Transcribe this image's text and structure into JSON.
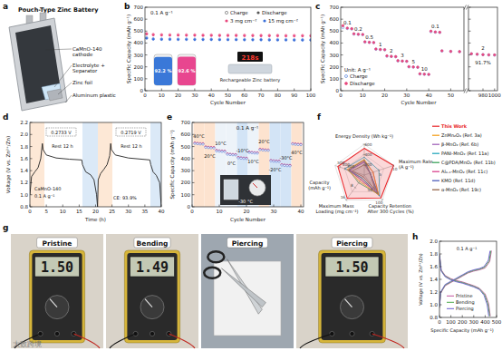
{
  "panel_labels": [
    "a",
    "b",
    "c",
    "d",
    "e",
    "f",
    "g",
    "h"
  ],
  "illustration": {
    "title": "Pouch-Type Zinc Battery",
    "layers": [
      "CaMnO-140 cathode",
      "Electrolyte + Separator",
      "Zinc foil",
      "Aluminum plastic"
    ]
  },
  "chart_data": [
    {
      "type": "scatter",
      "x_label": "Cycle Number",
      "y_label": "Specific Capacity (mAh g⁻¹)",
      "x": [
        1,
        5,
        10,
        15,
        20,
        25,
        30,
        35,
        40,
        45,
        50,
        55,
        60,
        65,
        70,
        75,
        80,
        85,
        90,
        95,
        100
      ],
      "xlim": [
        0,
        100
      ],
      "xticks": [
        0,
        10,
        20,
        30,
        40,
        50,
        60,
        70,
        80,
        90,
        100
      ],
      "ylim": [
        0,
        700
      ],
      "yticks": [
        0,
        100,
        200,
        300,
        400,
        500,
        600,
        700
      ],
      "series": [
        {
          "name": "3 mg cm⁻²",
          "color": "#e8467c",
          "values": [
            475,
            468,
            466,
            465,
            465,
            464,
            464,
            463,
            463,
            462,
            462,
            462,
            461,
            461,
            460,
            460,
            460,
            459,
            459,
            459,
            458
          ],
          "charge_values": [
            481,
            474,
            472,
            471,
            471,
            470,
            470,
            469,
            469,
            468,
            468,
            468,
            467,
            467,
            466,
            466,
            466,
            465,
            465,
            465,
            464
          ]
        },
        {
          "name": "15 mg cm⁻²",
          "color": "#3a6fd8",
          "values": [
            440,
            432,
            430,
            430,
            429,
            429,
            428,
            428,
            428,
            427,
            427,
            427,
            426,
            426,
            426,
            425,
            425,
            425,
            424,
            424,
            424
          ],
          "charge_values": [
            445,
            437,
            435,
            435,
            434,
            434,
            433,
            433,
            433,
            432,
            432,
            432,
            431,
            431,
            431,
            430,
            430,
            430,
            429,
            429,
            429
          ]
        }
      ],
      "legend_labels": [
        "Charge",
        "Discharge"
      ],
      "annotations": [
        "0.1 A g⁻¹",
        "218s",
        "Rechargeable Zinc battery"
      ],
      "retention": {
        "values": [
          92.2,
          92.6
        ],
        "value_labels": [
          "92.2 %",
          "92.6 %"
        ],
        "colors": [
          "#3a78d8",
          "#e8468f"
        ]
      }
    },
    {
      "type": "scatter",
      "x_label": "Cycle Number",
      "y_label": "Specific Capacity (mAh g⁻¹)",
      "x": [
        1,
        3,
        5,
        6,
        8,
        10,
        11,
        13,
        15,
        16,
        18,
        20,
        21,
        23,
        25,
        26,
        28,
        30,
        31,
        33,
        35,
        36,
        38,
        40,
        41,
        43,
        45,
        46,
        50,
        54
      ],
      "xlim": [
        0,
        56
      ],
      "xticks": [
        0,
        10,
        20,
        30,
        40,
        50
      ],
      "ylim": [
        0,
        700
      ],
      "yticks": [
        0,
        100,
        200,
        300,
        400,
        500,
        600,
        700
      ],
      "series": [
        {
          "name": "Charge",
          "color": "#3b6fd6",
          "marker": "open-circle",
          "values": [
            530,
            522,
            518,
            475,
            472,
            470,
            408,
            405,
            403,
            348,
            345,
            343,
            290,
            287,
            285,
            250,
            248,
            246,
            200,
            198,
            196,
            140,
            138,
            136,
            495,
            491,
            489,
            333,
            329,
            327
          ]
        },
        {
          "name": "Discharge",
          "color": "#e8467c",
          "marker": "circle",
          "values": [
            545,
            525,
            520,
            478,
            474,
            472,
            410,
            406,
            404,
            350,
            346,
            344,
            292,
            288,
            286,
            252,
            249,
            247,
            202,
            199,
            197,
            142,
            139,
            137,
            500,
            493,
            490,
            335,
            330,
            328
          ]
        }
      ],
      "rate_labels": [
        "0.1",
        "0.2",
        "0.5",
        "1",
        "2",
        "3",
        "5",
        "10",
        "0.1"
      ],
      "annotations": [
        "Unit: A g⁻¹"
      ]
    },
    {
      "type": "scatter",
      "x": [
        960,
        970,
        980,
        990,
        1000
      ],
      "xlim": [
        955,
        1005
      ],
      "xticks": [
        980,
        1000
      ],
      "ylim": [
        0,
        700
      ],
      "yticks": [
        0,
        100,
        200,
        300,
        400,
        500,
        600,
        700
      ],
      "tick_labels": "x",
      "series": [
        {
          "color": "#3b6fd6",
          "marker": "open-circle",
          "values": [
            309,
            305,
            302,
            300,
            299
          ]
        },
        {
          "color": "#e8467c",
          "marker": "circle",
          "values": [
            310,
            306,
            303,
            301,
            300
          ]
        }
      ],
      "annotations": [
        "2",
        "91.7%"
      ]
    },
    {
      "type": "line",
      "x_label": "Time (h)",
      "y_label": "Voltage (V vs. Zn²⁺/Zn)",
      "color": "#222222",
      "x": [
        0,
        0.5,
        1.5,
        2.5,
        3.3,
        3.8,
        4,
        5,
        8,
        12,
        15.8,
        16,
        17,
        18.5,
        19.5,
        20.3,
        20.6,
        20.8,
        21.5,
        22.5,
        23.5,
        24.3,
        24.6,
        24.8,
        26,
        30,
        36.5,
        36.8,
        37.5,
        38.5,
        39.5,
        40
      ],
      "values": [
        1.0,
        1.3,
        1.38,
        1.45,
        1.6,
        1.85,
        1.75,
        1.66,
        1.61,
        1.59,
        1.577,
        1.5,
        1.38,
        1.33,
        1.25,
        1.0,
        0.8,
        1.25,
        1.35,
        1.42,
        1.5,
        1.65,
        1.85,
        1.75,
        1.66,
        1.61,
        1.578,
        1.5,
        1.38,
        1.32,
        1.2,
        0.8
      ],
      "xlim": [
        0,
        40
      ],
      "xticks": [
        0,
        5,
        10,
        15,
        20,
        25,
        30,
        35,
        40
      ],
      "ylim": [
        0.8,
        2.2
      ],
      "yticks": [
        0.8,
        {
          "value": 1,
          "label": "1.0"
        },
        1.2,
        1.4,
        1.6,
        1.8,
        {
          "value": 2,
          "label": "2.0"
        },
        2.2
      ],
      "annotations": [
        "Rest 12 h",
        "Rest 12 h",
        "0.2733 V",
        "0.2719 V",
        "CaMnO-140",
        "0.1 A g⁻¹",
        "CE: 93.9%"
      ]
    },
    {
      "type": "scatter",
      "x_label": "Cycle Number",
      "y_label": "Specific Capacity (mAh g⁻¹)",
      "x": [
        1,
        2,
        3,
        4,
        5,
        6,
        7,
        8,
        9,
        10,
        11,
        12,
        13,
        14,
        15,
        16,
        17,
        18,
        19,
        20,
        21,
        22,
        23,
        24,
        25,
        26,
        27,
        28,
        29,
        30,
        31,
        32,
        33,
        34,
        35,
        36,
        37,
        38,
        39,
        40
      ],
      "xlim": [
        0,
        41
      ],
      "xticks": [
        0,
        10,
        20,
        30,
        40
      ],
      "ylim": [
        0,
        700
      ],
      "yticks": [
        0,
        100,
        200,
        300,
        400,
        500,
        600,
        700
      ],
      "series": [
        {
          "color": "#e8467c",
          "marker": "circle",
          "values": [
            530,
            527,
            525,
            524,
            498,
            495,
            493,
            492,
            468,
            465,
            463,
            462,
            440,
            437,
            435,
            434,
            410,
            407,
            405,
            404,
            455,
            452,
            450,
            449,
            478,
            475,
            473,
            472,
            385,
            382,
            380,
            379,
            350,
            347,
            345,
            344,
            525,
            522,
            520,
            519
          ]
        },
        {
          "color": "#3b6fd6",
          "marker": "open-circle",
          "values": [
            526,
            523,
            521,
            520,
            494,
            491,
            489,
            488,
            464,
            461,
            459,
            458,
            436,
            433,
            431,
            430,
            406,
            403,
            401,
            400,
            451,
            448,
            446,
            445,
            474,
            471,
            469,
            468,
            381,
            378,
            376,
            375,
            346,
            343,
            341,
            340,
            521,
            518,
            516,
            515
          ]
        }
      ],
      "temperature_labels": [
        "40°C",
        "20°C",
        "10°C",
        "0°C",
        "-10°C",
        "10°C",
        "20°C",
        "-20°C",
        "-30°C",
        "40°C"
      ],
      "annotations": [
        "0.1 A g⁻¹",
        "-30 °C"
      ]
    },
    {
      "type": "radar",
      "categories": [
        "Energy Density (Wh kg⁻¹)",
        "Maximum Rate (A g⁻¹)",
        "Capacity Retention After 300 Cycles (%)",
        "Maximum Mass Loading (mg cm⁻²)",
        "Capacity (mAh g⁻¹)"
      ],
      "ranges": [
        [
          0,
          600
        ],
        [
          0,
          10
        ],
        [
          0,
          100
        ],
        [
          0,
          16
        ],
        [
          0,
          600
        ]
      ],
      "ticks": [
        [
          200,
          400,
          600
        ],
        [
          5,
          10
        ],
        [
          50,
          100
        ],
        [
          8,
          16
        ],
        [
          300,
          400,
          500
        ]
      ],
      "series": [
        {
          "name": "This Work",
          "color": "#e8262a",
          "values": [
            520,
            10,
            92,
            15,
            540
          ]
        },
        {
          "name": "ZnMn₂O₄ (Ref. 3a)",
          "color": "#f39c12",
          "values": [
            300,
            3,
            80,
            4,
            350
          ]
        },
        {
          "name": "β-MnO₂ (Ref. 6b)",
          "color": "#9b59b6",
          "values": [
            250,
            2,
            70,
            3,
            300
          ]
        },
        {
          "name": "PANI-MnO₂ (Ref. 11a)",
          "color": "#17a2b8",
          "values": [
            350,
            5,
            85,
            2,
            400
          ]
        },
        {
          "name": "C@PDA/MnO₂ (Ref. 11b)",
          "color": "#2e9e4f",
          "values": [
            300,
            2,
            75,
            5,
            320
          ]
        },
        {
          "name": "Al₀.₁-MnO₂ (Ref. 11c)",
          "color": "#d63384",
          "values": [
            280,
            3,
            78,
            3,
            330
          ]
        },
        {
          "name": "KMO (Ref. 11d)",
          "color": "#3f51b5",
          "values": [
            260,
            2,
            82,
            2,
            300
          ]
        },
        {
          "name": "α-MnO₂ (Ref. 19c)",
          "color": "#8d5a3b",
          "values": [
            200,
            2,
            60,
            1,
            250
          ]
        }
      ]
    },
    {
      "type": "line",
      "x_label": "Specific Capacity (mAh g⁻¹)",
      "y_label": "Voltage (V vs. Zn²⁺/Zn)",
      "xlim": [
        0,
        500
      ],
      "xticks": [
        0,
        100,
        200,
        300,
        400,
        500
      ],
      "ylim": [
        0.8,
        2
      ],
      "yticks": [
        0.8,
        {
          "value": 1,
          "label": "1.0"
        },
        1.2,
        1.4,
        1.6,
        1.8,
        {
          "value": 2,
          "label": "2.0"
        }
      ],
      "series": [
        {
          "name": "Pristine",
          "color": "#c2539e",
          "x": [
            0,
            15,
            50,
            100,
            150,
            200,
            250,
            300,
            350,
            400,
            430,
            445
          ],
          "values": [
            1.8,
            1.55,
            1.46,
            1.41,
            1.38,
            1.36,
            1.33,
            1.3,
            1.26,
            1.17,
            1.02,
            0.82
          ],
          "charge_x": [
            0,
            10,
            50,
            100,
            150,
            200,
            250,
            300,
            350,
            400,
            440,
            455
          ],
          "charge_values": [
            0.95,
            1.18,
            1.3,
            1.35,
            1.4,
            1.45,
            1.5,
            1.53,
            1.55,
            1.58,
            1.68,
            1.85
          ]
        },
        {
          "name": "Bending",
          "color": "#4aa84a",
          "x": [
            0,
            15,
            50,
            100,
            150,
            200,
            250,
            300,
            350,
            395,
            425,
            440
          ],
          "values": [
            1.79,
            1.54,
            1.45,
            1.4,
            1.37,
            1.35,
            1.32,
            1.29,
            1.25,
            1.16,
            1.01,
            0.82
          ],
          "charge_x": [
            0,
            10,
            50,
            100,
            150,
            200,
            250,
            300,
            350,
            395,
            435,
            450
          ],
          "charge_values": [
            0.96,
            1.19,
            1.31,
            1.36,
            1.41,
            1.46,
            1.51,
            1.54,
            1.56,
            1.59,
            1.69,
            1.85
          ]
        },
        {
          "name": "Piercing",
          "color": "#6a5acd",
          "x": [
            0,
            15,
            50,
            100,
            150,
            200,
            250,
            300,
            350,
            390,
            418,
            432
          ],
          "values": [
            1.78,
            1.53,
            1.44,
            1.39,
            1.36,
            1.34,
            1.31,
            1.28,
            1.24,
            1.15,
            1.0,
            0.82
          ],
          "charge_x": [
            0,
            10,
            50,
            100,
            150,
            200,
            250,
            300,
            350,
            390,
            428,
            443
          ],
          "charge_values": [
            0.97,
            1.2,
            1.32,
            1.37,
            1.42,
            1.47,
            1.52,
            1.55,
            1.57,
            1.6,
            1.7,
            1.85
          ]
        }
      ],
      "legend": "lower left",
      "annotations": [
        "0.1 A g⁻¹"
      ]
    }
  ],
  "photos": [
    {
      "label": "Pristine",
      "reading": "1.50"
    },
    {
      "label": "Bending",
      "reading": "1.49"
    },
    {
      "label": "Piercing"
    },
    {
      "label": "Piercing",
      "reading": "1.50"
    }
  ],
  "watermark": "大数跨境"
}
